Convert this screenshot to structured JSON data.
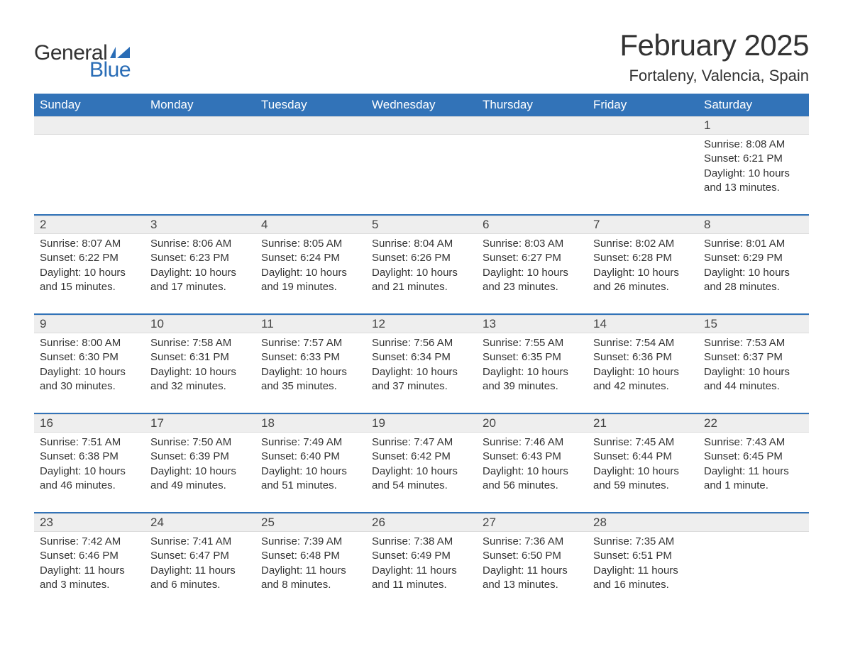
{
  "brand": {
    "part1": "General",
    "part2": "Blue",
    "icon_color": "#2a6db6"
  },
  "title": "February 2025",
  "location": "Fortaleny, Valencia, Spain",
  "colors": {
    "header_bg": "#3273b8",
    "header_text": "#ffffff",
    "row_divider": "#3273b8",
    "daynum_bg": "#eeeeee",
    "body_text": "#333333",
    "page_bg": "#ffffff"
  },
  "typography": {
    "title_fontsize": 42,
    "location_fontsize": 22,
    "weekday_fontsize": 17,
    "daynum_fontsize": 17,
    "body_fontsize": 15,
    "font_family": "Arial"
  },
  "layout": {
    "columns": 7,
    "weeks": 5,
    "first_day_column_index": 6
  },
  "weekdays": [
    "Sunday",
    "Monday",
    "Tuesday",
    "Wednesday",
    "Thursday",
    "Friday",
    "Saturday"
  ],
  "labels": {
    "sunrise": "Sunrise",
    "sunset": "Sunset",
    "daylight": "Daylight"
  },
  "days": [
    {
      "n": 1,
      "sunrise": "8:08 AM",
      "sunset": "6:21 PM",
      "daylight": "10 hours and 13 minutes."
    },
    {
      "n": 2,
      "sunrise": "8:07 AM",
      "sunset": "6:22 PM",
      "daylight": "10 hours and 15 minutes."
    },
    {
      "n": 3,
      "sunrise": "8:06 AM",
      "sunset": "6:23 PM",
      "daylight": "10 hours and 17 minutes."
    },
    {
      "n": 4,
      "sunrise": "8:05 AM",
      "sunset": "6:24 PM",
      "daylight": "10 hours and 19 minutes."
    },
    {
      "n": 5,
      "sunrise": "8:04 AM",
      "sunset": "6:26 PM",
      "daylight": "10 hours and 21 minutes."
    },
    {
      "n": 6,
      "sunrise": "8:03 AM",
      "sunset": "6:27 PM",
      "daylight": "10 hours and 23 minutes."
    },
    {
      "n": 7,
      "sunrise": "8:02 AM",
      "sunset": "6:28 PM",
      "daylight": "10 hours and 26 minutes."
    },
    {
      "n": 8,
      "sunrise": "8:01 AM",
      "sunset": "6:29 PM",
      "daylight": "10 hours and 28 minutes."
    },
    {
      "n": 9,
      "sunrise": "8:00 AM",
      "sunset": "6:30 PM",
      "daylight": "10 hours and 30 minutes."
    },
    {
      "n": 10,
      "sunrise": "7:58 AM",
      "sunset": "6:31 PM",
      "daylight": "10 hours and 32 minutes."
    },
    {
      "n": 11,
      "sunrise": "7:57 AM",
      "sunset": "6:33 PM",
      "daylight": "10 hours and 35 minutes."
    },
    {
      "n": 12,
      "sunrise": "7:56 AM",
      "sunset": "6:34 PM",
      "daylight": "10 hours and 37 minutes."
    },
    {
      "n": 13,
      "sunrise": "7:55 AM",
      "sunset": "6:35 PM",
      "daylight": "10 hours and 39 minutes."
    },
    {
      "n": 14,
      "sunrise": "7:54 AM",
      "sunset": "6:36 PM",
      "daylight": "10 hours and 42 minutes."
    },
    {
      "n": 15,
      "sunrise": "7:53 AM",
      "sunset": "6:37 PM",
      "daylight": "10 hours and 44 minutes."
    },
    {
      "n": 16,
      "sunrise": "7:51 AM",
      "sunset": "6:38 PM",
      "daylight": "10 hours and 46 minutes."
    },
    {
      "n": 17,
      "sunrise": "7:50 AM",
      "sunset": "6:39 PM",
      "daylight": "10 hours and 49 minutes."
    },
    {
      "n": 18,
      "sunrise": "7:49 AM",
      "sunset": "6:40 PM",
      "daylight": "10 hours and 51 minutes."
    },
    {
      "n": 19,
      "sunrise": "7:47 AM",
      "sunset": "6:42 PM",
      "daylight": "10 hours and 54 minutes."
    },
    {
      "n": 20,
      "sunrise": "7:46 AM",
      "sunset": "6:43 PM",
      "daylight": "10 hours and 56 minutes."
    },
    {
      "n": 21,
      "sunrise": "7:45 AM",
      "sunset": "6:44 PM",
      "daylight": "10 hours and 59 minutes."
    },
    {
      "n": 22,
      "sunrise": "7:43 AM",
      "sunset": "6:45 PM",
      "daylight": "11 hours and 1 minute."
    },
    {
      "n": 23,
      "sunrise": "7:42 AM",
      "sunset": "6:46 PM",
      "daylight": "11 hours and 3 minutes."
    },
    {
      "n": 24,
      "sunrise": "7:41 AM",
      "sunset": "6:47 PM",
      "daylight": "11 hours and 6 minutes."
    },
    {
      "n": 25,
      "sunrise": "7:39 AM",
      "sunset": "6:48 PM",
      "daylight": "11 hours and 8 minutes."
    },
    {
      "n": 26,
      "sunrise": "7:38 AM",
      "sunset": "6:49 PM",
      "daylight": "11 hours and 11 minutes."
    },
    {
      "n": 27,
      "sunrise": "7:36 AM",
      "sunset": "6:50 PM",
      "daylight": "11 hours and 13 minutes."
    },
    {
      "n": 28,
      "sunrise": "7:35 AM",
      "sunset": "6:51 PM",
      "daylight": "11 hours and 16 minutes."
    }
  ]
}
